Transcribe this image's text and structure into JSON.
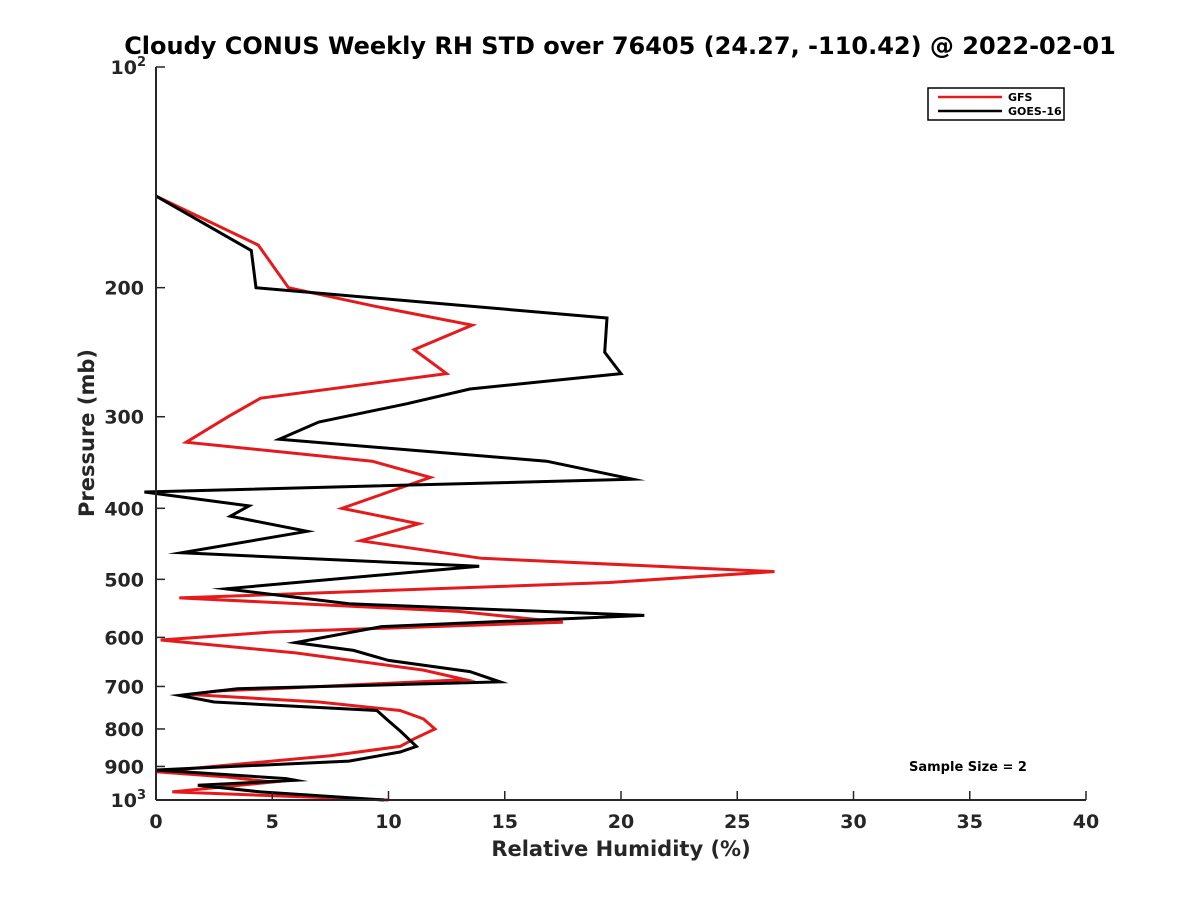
{
  "chart_data": {
    "type": "line",
    "title": "Cloudy CONUS Weekly RH STD over 76405 (24.27, -110.42) @ 2022-02-01",
    "xlabel": "Relative Humidity (%)",
    "ylabel": "Pressure (mb)",
    "xlim": [
      0,
      40
    ],
    "ylim": [
      100,
      1000
    ],
    "y_scale": "log",
    "y_reversed": true,
    "grid": false,
    "legend_position": "top-right",
    "x_ticks": [
      0,
      5,
      10,
      15,
      20,
      25,
      30,
      35,
      40
    ],
    "y_ticks": [
      {
        "value": 100,
        "base": "10",
        "exp": "2"
      },
      {
        "value": 200,
        "label": "200"
      },
      {
        "value": 300,
        "label": "300"
      },
      {
        "value": 400,
        "label": "400"
      },
      {
        "value": 500,
        "label": "500"
      },
      {
        "value": 600,
        "label": "600"
      },
      {
        "value": 700,
        "label": "700"
      },
      {
        "value": 800,
        "label": "800"
      },
      {
        "value": 900,
        "label": "900"
      },
      {
        "value": 1000,
        "base": "10",
        "exp": "3"
      }
    ],
    "annotation": "Sample Size = 2",
    "series": [
      {
        "name": "GFS",
        "color": "#e41a1c",
        "points": [
          [
            0,
            150
          ],
          [
            4.4,
            175
          ],
          [
            5.7,
            200
          ],
          [
            9.4,
            212
          ],
          [
            13.6,
            225
          ],
          [
            11.1,
            243
          ],
          [
            12.5,
            262
          ],
          [
            4.5,
            283
          ],
          [
            3.1,
            300
          ],
          [
            1.3,
            325
          ],
          [
            9.3,
            345
          ],
          [
            11.8,
            363
          ],
          [
            10.0,
            380
          ],
          [
            8.0,
            400
          ],
          [
            11.3,
            420
          ],
          [
            8.8,
            443
          ],
          [
            14.0,
            468
          ],
          [
            26.6,
            488
          ],
          [
            19.5,
            505
          ],
          [
            1.0,
            530
          ],
          [
            13.0,
            553
          ],
          [
            17.5,
            572
          ],
          [
            5.0,
            590
          ],
          [
            0.2,
            605
          ],
          [
            6.0,
            630
          ],
          [
            11.5,
            665
          ],
          [
            13.3,
            685
          ],
          [
            5.0,
            705
          ],
          [
            2.6,
            710
          ],
          [
            1.5,
            718
          ],
          [
            7.0,
            735
          ],
          [
            10.5,
            755
          ],
          [
            11.5,
            775
          ],
          [
            12.0,
            800
          ],
          [
            11.1,
            825
          ],
          [
            10.5,
            845
          ],
          [
            7.5,
            870
          ],
          [
            0.0,
            915
          ],
          [
            3.0,
            930
          ],
          [
            5.0,
            945
          ],
          [
            0.7,
            975
          ],
          [
            10.0,
            1000
          ]
        ]
      },
      {
        "name": "GOES-16",
        "color": "#000000",
        "points": [
          [
            0,
            150
          ],
          [
            4.1,
            178
          ],
          [
            4.3,
            200
          ],
          [
            19.4,
            220
          ],
          [
            19.3,
            245
          ],
          [
            20.0,
            262
          ],
          [
            13.5,
            275
          ],
          [
            10.8,
            288
          ],
          [
            7.0,
            305
          ],
          [
            5.3,
            322
          ],
          [
            16.8,
            345
          ],
          [
            20.5,
            365
          ],
          [
            -0.5,
            380
          ],
          [
            4.0,
            397
          ],
          [
            3.2,
            410
          ],
          [
            6.5,
            430
          ],
          [
            1.1,
            460
          ],
          [
            13.9,
            480
          ],
          [
            3.0,
            515
          ],
          [
            8.3,
            540
          ],
          [
            21.0,
            560
          ],
          [
            9.7,
            580
          ],
          [
            6.0,
            610
          ],
          [
            8.5,
            625
          ],
          [
            10.0,
            645
          ],
          [
            13.5,
            668
          ],
          [
            14.8,
            690
          ],
          [
            3.5,
            705
          ],
          [
            1.0,
            720
          ],
          [
            2.5,
            735
          ],
          [
            9.5,
            755
          ],
          [
            10.0,
            780
          ],
          [
            10.5,
            805
          ],
          [
            11.2,
            845
          ],
          [
            10.5,
            860
          ],
          [
            8.3,
            885
          ],
          [
            0.0,
            910
          ],
          [
            5.6,
            935
          ],
          [
            6.0,
            940
          ],
          [
            1.8,
            955
          ],
          [
            4.5,
            975
          ],
          [
            9.8,
            1000
          ]
        ]
      }
    ]
  }
}
